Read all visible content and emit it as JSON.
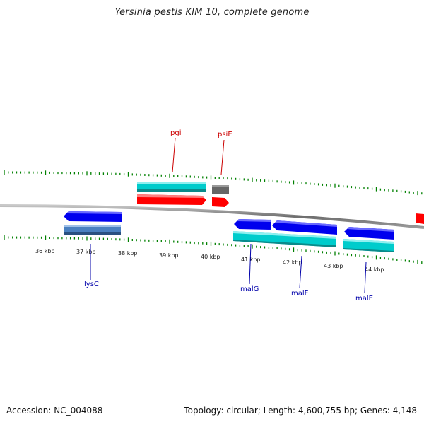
{
  "title": "Yersinia pestis KIM 10, complete genome",
  "footer": {
    "accession": "Accession: NC_004088",
    "stats": "Topology: circular; Length: 4,600,755 bp; Genes: 4,148"
  },
  "colors": {
    "backbone": "#808080",
    "forward_cds": "#ff0000",
    "reverse_cds": "#0000ee",
    "gene": "#00cccc",
    "gene_alt": "#4a80c0",
    "pseudo": "#666666",
    "ticks": "#008000",
    "forward_label": "#cc0000",
    "reverse_label": "#0000aa"
  },
  "ticks": [
    "36 kbp",
    "37 kbp",
    "38 kbp",
    "39 kbp",
    "40 kbp",
    "41 kbp",
    "42 kbp",
    "43 kbp",
    "44 kbp"
  ],
  "genes": [
    {
      "name": "pgi",
      "strand": "forward"
    },
    {
      "name": "psiE",
      "strand": "forward"
    },
    {
      "name": "lysC",
      "strand": "reverse"
    },
    {
      "name": "malG",
      "strand": "reverse"
    },
    {
      "name": "malF",
      "strand": "reverse"
    },
    {
      "name": "malE",
      "strand": "reverse"
    }
  ]
}
